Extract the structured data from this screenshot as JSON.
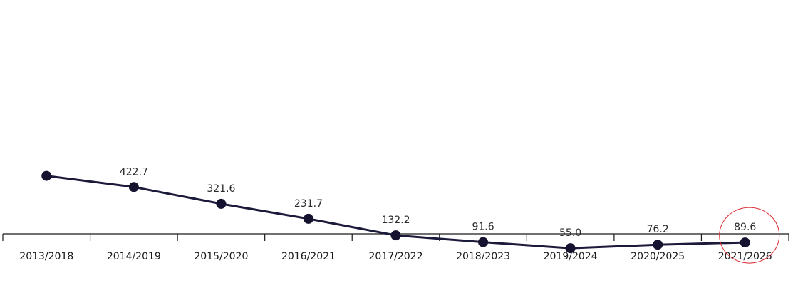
{
  "chart_data": {
    "type": "line",
    "title": "",
    "xlabel": "",
    "ylabel": "",
    "categories": [
      "2013/2018",
      "2014/2019",
      "2015/2020",
      "2016/2021",
      "2017/2022",
      "2018/2023",
      "2019/2024",
      "2020/2025",
      "2021/2026"
    ],
    "series": [
      {
        "values": [
          490,
          422.7,
          321.6,
          231.7,
          132.2,
          91.6,
          55.0,
          76.2,
          89.6
        ],
        "labels": [
          "",
          "422.7",
          "321.6",
          "231.7",
          "132.2",
          "91.6",
          "55.0",
          "76.2",
          "89.6"
        ]
      }
    ],
    "ylim": [
      0,
      1300
    ],
    "grid": false,
    "highlight": {
      "category": "2021/2026",
      "shape": "circle",
      "color": "#d9262b"
    },
    "colors": {
      "line": "#1c1a3a",
      "marker": "#14122e",
      "axis": "#1a1a1a"
    }
  }
}
